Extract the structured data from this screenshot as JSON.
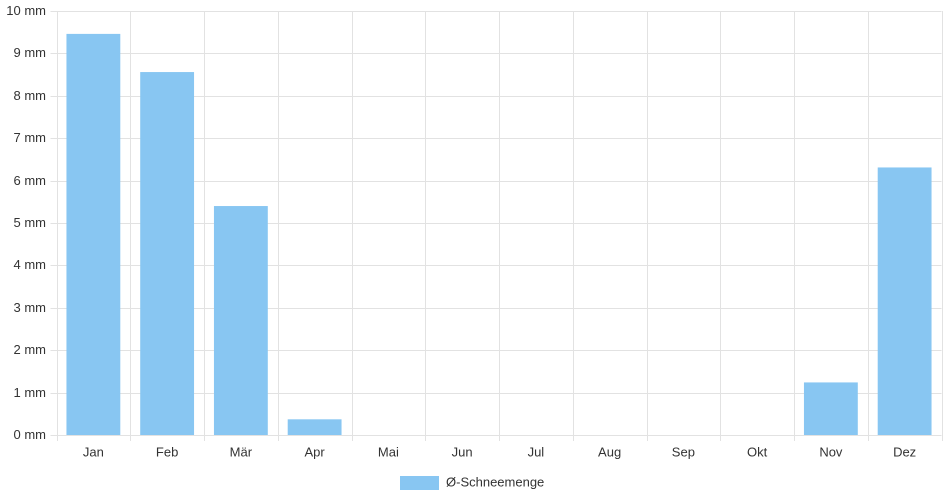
{
  "chart_data": {
    "type": "bar",
    "categories": [
      "Jan",
      "Feb",
      "Mär",
      "Apr",
      "Mai",
      "Jun",
      "Jul",
      "Aug",
      "Sep",
      "Okt",
      "Nov",
      "Dez"
    ],
    "series": [
      {
        "name": "Ø-Schneemenge",
        "color": "#88c6f2",
        "values": [
          9.46,
          8.56,
          5.4,
          0.37,
          0,
          0,
          0,
          0,
          0,
          0,
          1.24,
          6.31
        ]
      }
    ],
    "ylim": [
      0,
      10
    ],
    "yticks": [
      {
        "value": 0,
        "label": "0 mm"
      },
      {
        "value": 1,
        "label": "1 mm"
      },
      {
        "value": 2,
        "label": "2 mm"
      },
      {
        "value": 3,
        "label": "3 mm"
      },
      {
        "value": 4,
        "label": "4 mm"
      },
      {
        "value": 5,
        "label": "5 mm"
      },
      {
        "value": 6,
        "label": "6 mm"
      },
      {
        "value": 7,
        "label": "7 mm"
      },
      {
        "value": 8,
        "label": "8 mm"
      },
      {
        "value": 9,
        "label": "9 mm"
      },
      {
        "value": 10,
        "label": "10 mm"
      }
    ],
    "grid": true,
    "legend": "bottom"
  }
}
